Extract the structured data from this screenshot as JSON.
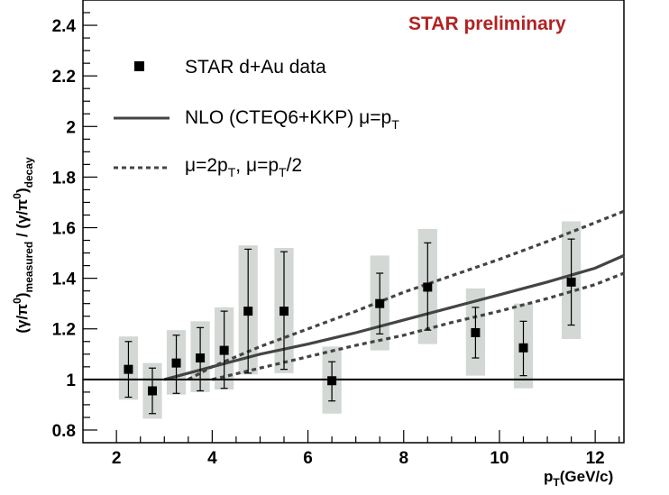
{
  "chart_data": {
    "type": "scatter",
    "title": "STAR preliminary",
    "xlabel": "p_T (GeV/c)",
    "ylabel": "(γ/π⁰)_measured / (γ/π⁰)_decay",
    "xlim": [
      1.3,
      12.6
    ],
    "ylim": [
      0.75,
      2.5
    ],
    "xticks": [
      2,
      4,
      6,
      8,
      10,
      12
    ],
    "yticks": [
      0.8,
      1,
      1.2,
      1.4,
      1.6,
      1.8,
      2,
      2.2,
      2.4
    ],
    "ytick_labels": [
      "0.8",
      "1",
      "1.2",
      "1.4",
      "1.6",
      "1.8",
      "2",
      "2.2",
      "2.4"
    ],
    "reference_line": 1,
    "legend": {
      "data": "STAR d+Au data",
      "nlo": "NLO (CTEQ6+KKP) μ=p",
      "nlo_sub": "T",
      "scale_a": "μ=2p",
      "scale_a_sub": "T",
      "scale_sep": ", μ=p",
      "scale_b_sub": "T",
      "scale_b_tail": "/2"
    },
    "axis_text": {
      "x_main": "p",
      "x_sub": "T",
      "x_tail": "(GeV/c)",
      "y_open": "(γ/π",
      "y_sup": "0",
      "y_close": ")",
      "y_sub": "measured",
      "y_mid": " / (γ/π",
      "y_sup2": "0",
      "y_close2": ")",
      "y_sub2": "decay"
    },
    "series": [
      {
        "name": "STAR d+Au data",
        "x": [
          2.25,
          2.75,
          3.25,
          3.75,
          4.25,
          4.75,
          5.5,
          6.5,
          7.5,
          8.5,
          9.5,
          10.5,
          11.5
        ],
        "y": [
          1.04,
          0.955,
          1.065,
          1.085,
          1.115,
          1.27,
          1.27,
          0.995,
          1.3,
          1.365,
          1.185,
          1.125,
          1.385
        ],
        "stat_err_low": [
          0.11,
          0.09,
          0.12,
          0.13,
          0.15,
          0.245,
          0.23,
          0.08,
          0.12,
          0.17,
          0.1,
          0.11,
          0.17
        ],
        "stat_err_high": [
          0.11,
          0.09,
          0.11,
          0.12,
          0.155,
          0.245,
          0.235,
          0.075,
          0.12,
          0.175,
          0.1,
          0.105,
          0.17
        ],
        "sys_low": [
          0.92,
          0.845,
          0.94,
          0.95,
          0.96,
          1.02,
          1.025,
          0.865,
          1.115,
          1.14,
          1.015,
          0.965,
          1.16
        ],
        "sys_high": [
          1.17,
          1.065,
          1.195,
          1.23,
          1.285,
          1.53,
          1.52,
          1.13,
          1.49,
          1.595,
          1.36,
          1.3,
          1.625
        ],
        "sys_halfwidth_x": [
          0.2,
          0.2,
          0.2,
          0.2,
          0.2,
          0.2,
          0.2,
          0.2,
          0.2,
          0.2,
          0.2,
          0.2,
          0.2
        ]
      },
      {
        "name": "NLO (CTEQ6+KKP) μ=pT",
        "style": "solid",
        "x": [
          3.0,
          4.0,
          5.0,
          6.0,
          7.0,
          8.0,
          9.0,
          10.0,
          11.0,
          12.0,
          12.6
        ],
        "y": [
          1.0,
          1.05,
          1.1,
          1.14,
          1.185,
          1.235,
          1.285,
          1.335,
          1.385,
          1.44,
          1.49
        ]
      },
      {
        "name": "μ=2pT (upper)",
        "style": "dashed",
        "x": [
          3.5,
          4.0,
          5.0,
          6.0,
          7.0,
          8.0,
          9.0,
          10.0,
          11.0,
          12.0,
          12.6
        ],
        "y": [
          1.0,
          1.05,
          1.13,
          1.2,
          1.27,
          1.345,
          1.41,
          1.475,
          1.545,
          1.62,
          1.665
        ]
      },
      {
        "name": "μ=pT/2 (lower)",
        "style": "dashed",
        "x": [
          4.0,
          5.0,
          6.0,
          7.0,
          8.0,
          9.0,
          10.0,
          11.0,
          12.0,
          12.6
        ],
        "y": [
          1.0,
          1.045,
          1.09,
          1.135,
          1.175,
          1.225,
          1.27,
          1.32,
          1.375,
          1.42
        ]
      }
    ]
  }
}
